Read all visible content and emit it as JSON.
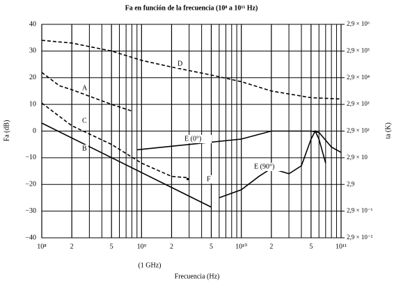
{
  "chart_data": {
    "type": "line",
    "title": "Fa en función de la frecuencia (10⁸ a 10¹¹ Hz)",
    "xlabel": "Frecuencia (Hz)",
    "ylabel": "Fa (dB)",
    "y2label": "ta (K)",
    "xlog": true,
    "y2log": true,
    "grid": true,
    "xlim": [
      100000000,
      100000000000
    ],
    "xticks": [
      {
        "value": 100000000,
        "label": "10⁸"
      },
      {
        "value": 200000000,
        "label": "2"
      },
      {
        "value": 500000000,
        "label": "5"
      },
      {
        "value": 1000000000,
        "label": "10⁹"
      },
      {
        "value": 2000000000,
        "label": "2"
      },
      {
        "value": 5000000000,
        "label": "5"
      },
      {
        "value": 10000000000,
        "label": "10¹⁰"
      },
      {
        "value": 20000000000,
        "label": "2"
      },
      {
        "value": 50000000000,
        "label": "5"
      },
      {
        "value": 100000000000,
        "label": "10¹¹"
      }
    ],
    "xgrid": [
      300000000,
      400000000,
      600000000,
      700000000,
      800000000,
      900000000,
      3000000000,
      4000000000,
      6000000000,
      7000000000,
      8000000000,
      9000000000,
      30000000000,
      40000000000,
      60000000000,
      70000000000,
      80000000000,
      90000000000
    ],
    "ylim": [
      -40,
      40
    ],
    "yticks": [
      {
        "value": -40,
        "label": "−40"
      },
      {
        "value": -30,
        "label": "−30"
      },
      {
        "value": -20,
        "label": "−20"
      },
      {
        "value": -10,
        "label": "−10"
      },
      0,
      10,
      20,
      30,
      40
    ],
    "y2lim": [
      0.029,
      2900000
    ],
    "y2ticks": [
      {
        "value": 0.029,
        "label": "2,9 × 10⁻²"
      },
      {
        "value": 0.29,
        "label": "2,9 × 10⁻¹"
      },
      {
        "value": 2.9,
        "label": "2,9"
      },
      {
        "value": 29,
        "label": "2,9 × 10"
      },
      {
        "value": 290,
        "label": "2,9 × 10²"
      },
      {
        "value": 2900,
        "label": "2,9 × 10³"
      },
      {
        "value": 29000,
        "label": "2,9 × 10⁴"
      },
      {
        "value": 290000,
        "label": "2,9 × 10⁵"
      },
      {
        "value": 2900000,
        "label": "2,9 × 10⁶"
      }
    ],
    "annotations": [
      "(1 GHz)"
    ],
    "series": [
      {
        "name": "A",
        "color": "#000000",
        "dashed": true,
        "x": [
          100000000,
          150000000,
          200000000,
          500000000,
          800000000
        ],
        "values": [
          22,
          17,
          15.5,
          10,
          7.5
        ]
      },
      {
        "name": "B",
        "color": "#000000",
        "dashed": false,
        "x": [
          100000000,
          5000000000
        ],
        "values": [
          3,
          -28.5
        ]
      },
      {
        "name": "C",
        "color": "#000000",
        "dashed": true,
        "x": [
          100000000,
          200000000,
          500000000,
          1000000000,
          2000000000,
          3000000000
        ],
        "values": [
          10.5,
          2,
          -5,
          -12,
          -17,
          -17.5
        ]
      },
      {
        "name": "D",
        "color": "#000000",
        "dashed": true,
        "x": [
          100000000,
          200000000,
          500000000,
          1000000000,
          2000000000,
          5000000000,
          10000000000,
          20000000000,
          50000000000,
          100000000000
        ],
        "values": [
          34,
          33,
          30,
          26.5,
          24,
          21,
          18.5,
          15,
          12.5,
          12
        ]
      },
      {
        "name": "E (0°)",
        "color": "#000000",
        "dashed": false,
        "x": [
          900000000,
          10000000000,
          20000000000,
          50000000000,
          60000000000,
          80000000000,
          100000000000
        ],
        "values": [
          -7,
          -3,
          0,
          0,
          -0.5,
          -6,
          -8
        ]
      },
      {
        "name": "E (90°)",
        "color": "#000000",
        "dashed": false,
        "x": [
          6000000000,
          10000000000,
          15000000000,
          20000000000,
          30000000000,
          40000000000,
          50000000000,
          55000000000,
          60000000000,
          70000000000
        ],
        "values": [
          -25,
          -22,
          -17,
          -14,
          -16,
          -13,
          -3,
          0,
          -3,
          -12
        ]
      },
      {
        "name": "F",
        "color": "#000000",
        "dashed": false,
        "x": [
          2900000000
        ],
        "values": [
          -18
        ]
      }
    ]
  }
}
